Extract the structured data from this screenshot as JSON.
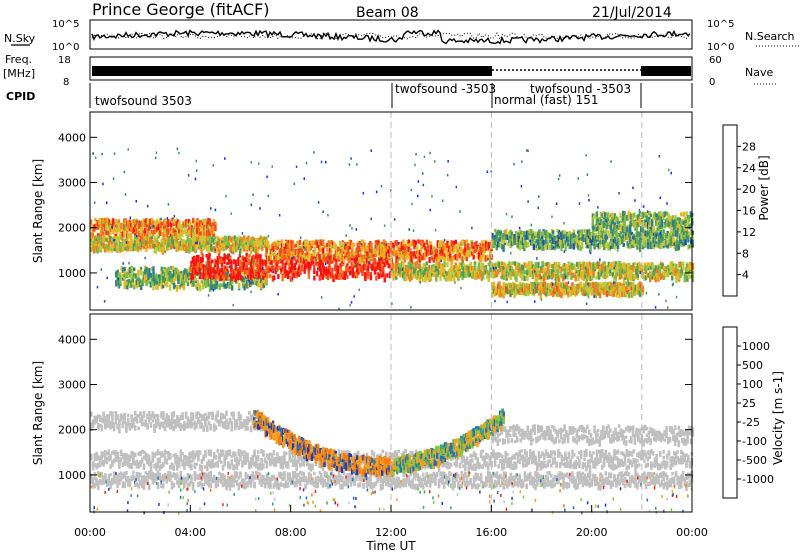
{
  "header": {
    "station": "Prince George (fitACF)",
    "beam": "Beam 08",
    "date": "21/Jul/2014"
  },
  "strips": {
    "nsky_label": "N.Sky",
    "nsky_ticks": [
      "10^5",
      "10^0"
    ],
    "nsearch_ticks": [
      "10^5",
      "10^0"
    ],
    "nsearch_label": "N.Search",
    "freq_label": "Freq.",
    "freq_unit": "[MHz]",
    "freq_ticks": [
      "18",
      "8"
    ],
    "nave_ticks": [
      "60",
      "0"
    ],
    "nave_label": "Nave",
    "cpid_label": "CPID",
    "cpid_segments": [
      {
        "label": "twofsound 3503",
        "start_h": 0.0
      },
      {
        "label": "twofsound -3503",
        "start_h": 12.0
      },
      {
        "label": "normal (fast) 151",
        "start_h": 16.0
      },
      {
        "label": "twofsound -3503",
        "start_h": 17.5
      }
    ]
  },
  "chart_data": [
    {
      "type": "heatmap",
      "name": "power",
      "ylabel": "Slant Range [km]",
      "x_range_h": [
        0,
        24
      ],
      "ylim": [
        180,
        4560
      ],
      "y_ticks": [
        1000,
        2000,
        3000,
        4000
      ],
      "colorbar": {
        "label": "Power [dB]",
        "ticks": [
          "28",
          "24",
          "20",
          "16",
          "12",
          "8",
          "4"
        ],
        "range": [
          0,
          30
        ],
        "colors": [
          "#1428ff",
          "#234fa0",
          "#2f7f8a",
          "#4a9a5a",
          "#7fbb45",
          "#c4c93a",
          "#f2b21e",
          "#f47a1c",
          "#ef4a20",
          "#ff1010"
        ]
      },
      "echo_bands": [
        {
          "h0": 0.0,
          "h1": 5.0,
          "r": 2000,
          "w": 180,
          "level": 0.72
        },
        {
          "h0": 0.0,
          "h1": 7.0,
          "r": 1650,
          "w": 140,
          "level": 0.58
        },
        {
          "h0": 1.0,
          "h1": 7.0,
          "r": 900,
          "w": 220,
          "level": 0.45
        },
        {
          "h0": 4.0,
          "h1": 12.0,
          "r": 1150,
          "w": 260,
          "level": 0.93
        },
        {
          "h0": 7.0,
          "h1": 16.0,
          "r": 1500,
          "w": 200,
          "level": 0.75
        },
        {
          "h0": 12.0,
          "h1": 24.0,
          "r": 1050,
          "w": 170,
          "level": 0.55
        },
        {
          "h0": 16.0,
          "h1": 22.0,
          "r": 650,
          "w": 120,
          "level": 0.6
        },
        {
          "h0": 16.0,
          "h1": 24.0,
          "r": 1750,
          "w": 180,
          "level": 0.38
        },
        {
          "h0": 20.0,
          "h1": 24.0,
          "r": 2150,
          "w": 180,
          "level": 0.42
        }
      ]
    },
    {
      "type": "heatmap",
      "name": "velocity",
      "ylabel": "Slant Range [km]",
      "xlabel": "Time UT",
      "x_range_h": [
        0,
        24
      ],
      "x_ticks": [
        "00:00",
        "04:00",
        "08:00",
        "12:00",
        "16:00",
        "20:00",
        "00:00"
      ],
      "ylim": [
        180,
        4560
      ],
      "y_ticks": [
        1000,
        2000,
        3000,
        4000
      ],
      "colorbar": {
        "label": "Velocity [m s-1]",
        "ticks": [
          "1000",
          "500",
          "100",
          "25",
          "-25",
          "-100",
          "-500",
          "-1000"
        ],
        "colors": [
          "#1e3cb4",
          "#2a6fb0",
          "#3aa07c",
          "#7ccc3a",
          "#c8c8c8",
          "#f5a020",
          "#f57a10",
          "#ff2010"
        ]
      },
      "ground_scatter_color": "#c0c0c0",
      "ground_scatter_bands": [
        {
          "h0": 0.0,
          "h1": 7.0,
          "r": 2200,
          "w": 180
        },
        {
          "h0": 0.0,
          "h1": 24.0,
          "r": 1350,
          "w": 180
        },
        {
          "h0": 0.0,
          "h1": 24.0,
          "r": 900,
          "w": 150
        },
        {
          "h0": 16.0,
          "h1": 24.0,
          "r": 1900,
          "w": 180
        }
      ],
      "ionospheric_arc": {
        "h0": 6.5,
        "h1": 16.5,
        "r_min": 1200,
        "r_edge": 2300
      }
    }
  ]
}
